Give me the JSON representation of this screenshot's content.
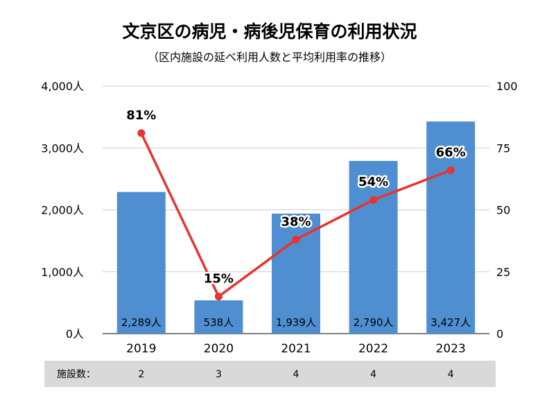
{
  "chart_data": {
    "type": "bar+line",
    "title": "文京区の病児・病後児保育の利用状況",
    "subtitle": "（区内施設の延べ利用人数と平均利用率の推移）",
    "categories": [
      "2019",
      "2020",
      "2021",
      "2022",
      "2023"
    ],
    "bars": {
      "name": "延べ利用人数",
      "values": [
        2289,
        538,
        1939,
        2790,
        3427
      ],
      "labels": [
        "2,289人",
        "538人",
        "1,939人",
        "2,790人",
        "3,427人"
      ],
      "color": "#4f8fd1"
    },
    "line": {
      "name": "平均利用率",
      "values": [
        81,
        15,
        38,
        54,
        66
      ],
      "labels": [
        "81%",
        "15%",
        "38%",
        "54%",
        "66%"
      ],
      "color": "#e8332e"
    },
    "left_axis": {
      "ylim": [
        0,
        4000
      ],
      "ticks": [
        0,
        1000,
        2000,
        3000,
        4000
      ],
      "tick_labels": [
        "0人",
        "1,000人",
        "2,000人",
        "3,000人",
        "4,000人"
      ]
    },
    "right_axis": {
      "ylim": [
        0,
        100
      ],
      "ticks": [
        0,
        25,
        50,
        75,
        100
      ],
      "tick_labels": [
        "0",
        "25",
        "50",
        "75",
        "100"
      ]
    },
    "grid": true,
    "facility_row": {
      "label": "施設数：",
      "values": [
        "2",
        "3",
        "4",
        "4",
        "4"
      ]
    }
  }
}
